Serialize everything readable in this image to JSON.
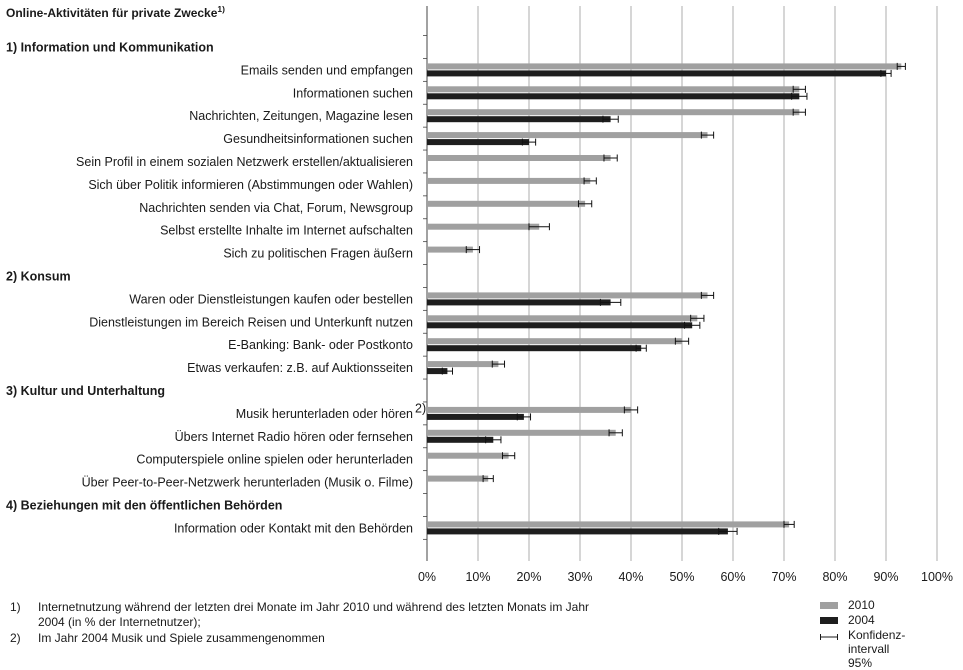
{
  "chart_data": {
    "type": "bar",
    "orientation": "horizontal",
    "title": "Online-Aktivitäten für private Zwecke",
    "title_superscript": "1)",
    "xlim": [
      0,
      100
    ],
    "x_ticks": [
      "0%",
      "10%",
      "20%",
      "30%",
      "40%",
      "50%",
      "60%",
      "70%",
      "80%",
      "90%",
      "100%"
    ],
    "grid": "vertical",
    "colors": {
      "2010": "#a0a0a0",
      "2004": "#1e1e1e"
    },
    "rows": [
      {
        "kind": "section",
        "label": "1) Information und Kommunikation"
      },
      {
        "kind": "item",
        "label": "Emails senden und empfangen",
        "v2010": 93,
        "ci2010": 0.8,
        "v2004": 90,
        "ci2004": 1.0
      },
      {
        "kind": "item",
        "label": "Informationen suchen",
        "v2010": 73,
        "ci2010": 1.2,
        "v2004": 73,
        "ci2004": 1.5
      },
      {
        "kind": "item",
        "label": "Nachrichten, Zeitungen, Magazine lesen",
        "v2010": 73,
        "ci2010": 1.2,
        "v2004": 36,
        "ci2004": 1.5
      },
      {
        "kind": "item",
        "label": "Gesundheitsinformationen suchen",
        "v2010": 55,
        "ci2010": 1.2,
        "v2004": 20,
        "ci2004": 1.3
      },
      {
        "kind": "item",
        "label": "Sein Profil in einem sozialen Netzwerk erstellen/aktualisieren",
        "v2010": 36,
        "ci2010": 1.3,
        "v2004": null,
        "ci2004": null
      },
      {
        "kind": "item",
        "label": "Sich über Politik informieren (Abstimmungen oder Wahlen)",
        "v2010": 32,
        "ci2010": 1.2,
        "v2004": null,
        "ci2004": null
      },
      {
        "kind": "item",
        "label": "Nachrichten senden via Chat, Forum, Newsgroup",
        "v2010": 31,
        "ci2010": 1.3,
        "v2004": null,
        "ci2004": null
      },
      {
        "kind": "item",
        "label": "Selbst erstellte Inhalte im Internet aufschalten",
        "v2010": 22,
        "ci2010": 2.0,
        "v2004": null,
        "ci2004": null
      },
      {
        "kind": "item",
        "label": "Sich zu politischen Fragen äußern",
        "v2010": 9,
        "ci2010": 1.3,
        "v2004": null,
        "ci2004": null
      },
      {
        "kind": "section",
        "label": "2) Konsum"
      },
      {
        "kind": "item",
        "label": "Waren oder Dienstleistungen kaufen oder bestellen",
        "v2010": 55,
        "ci2010": 1.2,
        "v2004": 36,
        "ci2004": 2.0
      },
      {
        "kind": "item",
        "label": "Dienstleistungen im Bereich Reisen und Unterkunft nutzen",
        "v2010": 53,
        "ci2010": 1.3,
        "v2004": 52,
        "ci2004": 1.5
      },
      {
        "kind": "item",
        "label": "E-Banking: Bank- oder Postkonto",
        "v2010": 50,
        "ci2010": 1.3,
        "v2004": 42,
        "ci2004": 1.0
      },
      {
        "kind": "item",
        "label": "Etwas verkaufen: z.B. auf Auktionsseiten",
        "v2010": 14,
        "ci2010": 1.2,
        "v2004": 4,
        "ci2004": 1.0
      },
      {
        "kind": "section",
        "label": "3) Kultur und Unterhaltung"
      },
      {
        "kind": "item",
        "label": "Musik herunterladen oder hören",
        "note": "2)",
        "v2010": 40,
        "ci2010": 1.3,
        "v2004": 19,
        "ci2004": 1.3
      },
      {
        "kind": "item",
        "label": "Übers Internet Radio hören oder fernsehen",
        "v2010": 37,
        "ci2010": 1.3,
        "v2004": 13,
        "ci2004": 1.5
      },
      {
        "kind": "item",
        "label": "Computerspiele online spielen oder herunterladen",
        "v2010": 16,
        "ci2010": 1.2,
        "v2004": null,
        "ci2004": null
      },
      {
        "kind": "item",
        "label": "Über Peer-to-Peer-Netzwerk  herunterladen (Musik o. Filme)",
        "v2010": 12,
        "ci2010": 1.0,
        "v2004": null,
        "ci2004": null
      },
      {
        "kind": "section",
        "label": "4) Beziehungen mit den öffentlichen Behörden"
      },
      {
        "kind": "item",
        "label": "Information oder Kontakt mit den Behörden",
        "v2010": 71,
        "ci2010": 1.0,
        "v2004": 59,
        "ci2004": 1.8
      }
    ]
  },
  "footnotes": [
    {
      "num": "1)",
      "text": "Internetnutzung während  der letzten drei Monate im Jahr 2010 und während  des letzten Monats im Jahr",
      "text2": "2004 (in % der Internetnutzer);"
    },
    {
      "num": "2)",
      "text": "Im Jahr 2004 Musik und Spiele zusammengenommen"
    }
  ],
  "legend": {
    "s2010": "2010",
    "s2004": "2004",
    "ci_line1": "Konfidenz-",
    "ci_line2": "intervall 95%"
  }
}
